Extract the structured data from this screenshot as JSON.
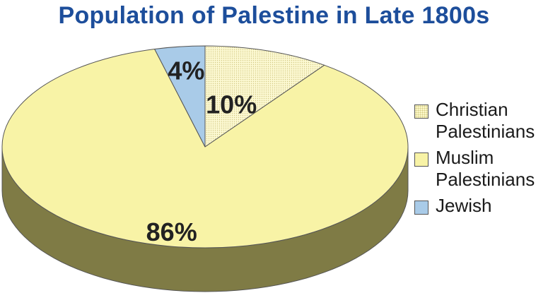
{
  "chart_data": {
    "type": "pie",
    "title": "Population of Palestine in Late 1800s",
    "slices": [
      {
        "label": "Christian\nPalestinians",
        "value": 10,
        "data_label": "10%",
        "color": "#fbf7c8",
        "side_color": "#8a8450",
        "pattern": "dotted"
      },
      {
        "label": "Muslim\nPalestinians",
        "value": 86,
        "data_label": "86%",
        "color": "#f8f3a6",
        "side_color": "#7f7b45",
        "pattern": "solid"
      },
      {
        "label": "Jewish",
        "value": 4,
        "data_label": "4%",
        "color": "#a9cbe8",
        "side_color": "#5d7f9e",
        "pattern": "solid"
      }
    ],
    "legend_position": "right",
    "start_angle": "12 o'clock",
    "direction": "clockwise"
  },
  "colors": {
    "title": "#1d4e9b",
    "data_label": "#222222",
    "outline": "#555555"
  }
}
